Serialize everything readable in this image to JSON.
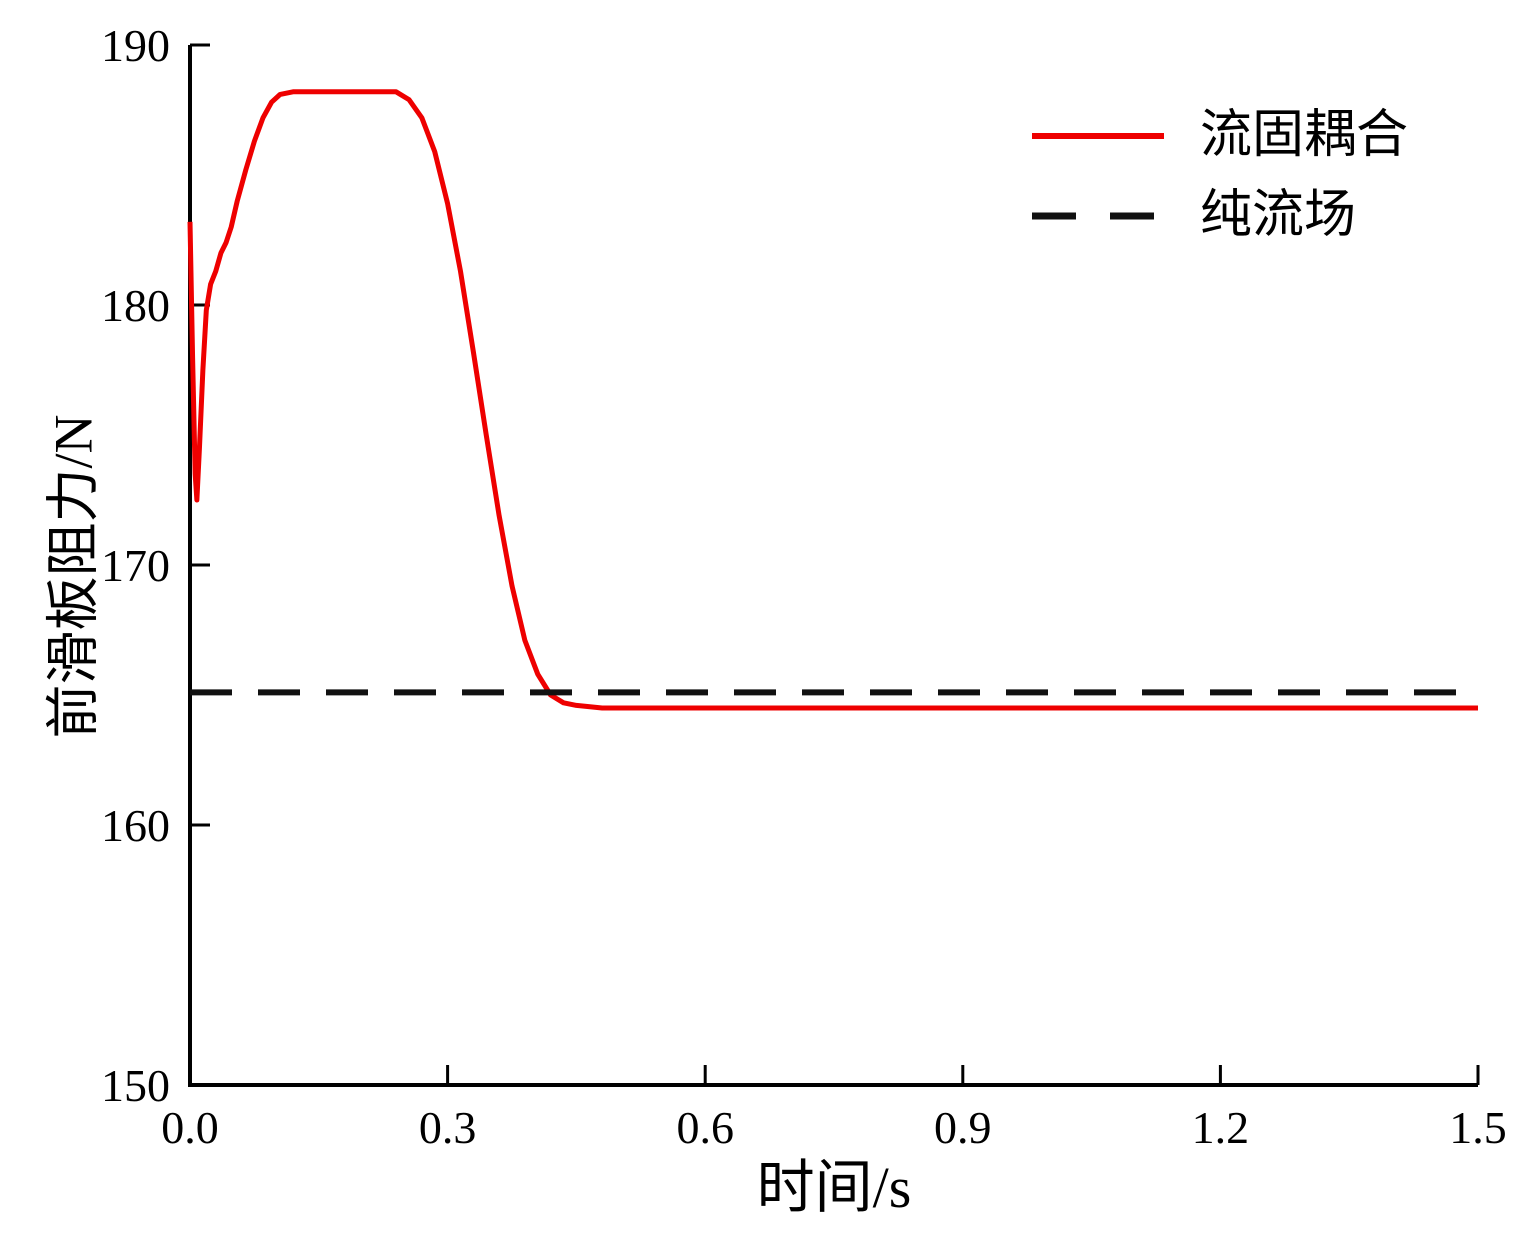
{
  "chart_data": {
    "type": "line",
    "title": "",
    "xlabel": "时间/s",
    "ylabel": "前滑板阻力/N",
    "xlim": [
      0,
      1.5
    ],
    "ylim": [
      150,
      190
    ],
    "xticks": [
      0,
      0.3,
      0.6,
      0.9,
      1.2,
      1.5
    ],
    "xtick_labels": [
      "0.0",
      "0.3",
      "0.6",
      "0.9",
      "1.2",
      "1.5"
    ],
    "yticks": [
      150,
      160,
      170,
      180,
      190
    ],
    "ytick_labels": [
      "150",
      "160",
      "170",
      "180",
      "190"
    ],
    "grid": false,
    "legend_position": "top-right",
    "series": [
      {
        "name": "流固耦合",
        "color": "#ee0000",
        "style": "solid",
        "width": 5,
        "points": [
          [
            0.0,
            183.2
          ],
          [
            0.003,
            178.0
          ],
          [
            0.006,
            173.5
          ],
          [
            0.008,
            172.5
          ],
          [
            0.011,
            174.5
          ],
          [
            0.015,
            177.5
          ],
          [
            0.019,
            179.8
          ],
          [
            0.024,
            180.8
          ],
          [
            0.03,
            181.3
          ],
          [
            0.036,
            182.0
          ],
          [
            0.042,
            182.4
          ],
          [
            0.048,
            183.0
          ],
          [
            0.055,
            184.0
          ],
          [
            0.065,
            185.2
          ],
          [
            0.075,
            186.3
          ],
          [
            0.085,
            187.2
          ],
          [
            0.095,
            187.8
          ],
          [
            0.105,
            188.1
          ],
          [
            0.12,
            188.2
          ],
          [
            0.24,
            188.2
          ],
          [
            0.255,
            187.9
          ],
          [
            0.27,
            187.2
          ],
          [
            0.285,
            185.9
          ],
          [
            0.3,
            183.9
          ],
          [
            0.315,
            181.3
          ],
          [
            0.33,
            178.2
          ],
          [
            0.345,
            175.0
          ],
          [
            0.36,
            171.9
          ],
          [
            0.375,
            169.2
          ],
          [
            0.39,
            167.1
          ],
          [
            0.405,
            165.8
          ],
          [
            0.42,
            165.0
          ],
          [
            0.435,
            164.7
          ],
          [
            0.45,
            164.6
          ],
          [
            0.48,
            164.5
          ],
          [
            0.55,
            164.5
          ],
          [
            0.65,
            164.5
          ],
          [
            0.75,
            164.5
          ],
          [
            0.85,
            164.5
          ],
          [
            0.95,
            164.5
          ],
          [
            1.05,
            164.5
          ],
          [
            1.15,
            164.5
          ],
          [
            1.25,
            164.5
          ],
          [
            1.35,
            164.5
          ],
          [
            1.45,
            164.5
          ],
          [
            1.5,
            164.5
          ]
        ]
      },
      {
        "name": "纯流场",
        "color": "#111111",
        "style": "dashed",
        "width": 6,
        "points": [
          [
            0,
            165.1
          ],
          [
            1.5,
            165.1
          ]
        ]
      }
    ]
  }
}
